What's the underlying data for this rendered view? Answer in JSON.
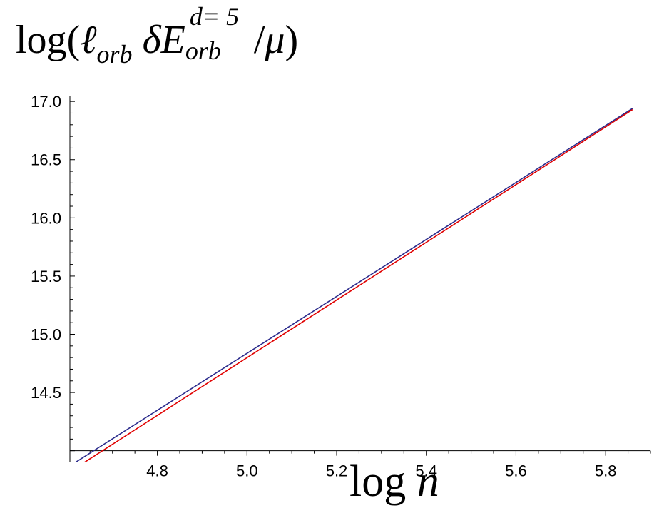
{
  "chart_data": {
    "type": "line",
    "title": "",
    "xlabel": {
      "prefix": "log",
      "var": "n"
    },
    "ylabel": {
      "prefix": "log",
      "l": "ℓ",
      "l_sub": "orb",
      "delta_E": "δE",
      "sup": "d= 5",
      "E_sub": "orb",
      "slash": "/",
      "mu": "μ"
    },
    "xlim": [
      4.605,
      5.9
    ],
    "ylim": [
      13.9,
      17.05
    ],
    "x_origin": 4.605,
    "y_origin": 14.0,
    "x_ticks": [
      {
        "value": 4.8,
        "label": "4.8"
      },
      {
        "value": 5.0,
        "label": "5.0"
      },
      {
        "value": 5.2,
        "label": "5.2"
      },
      {
        "value": 5.4,
        "label": "5.4"
      },
      {
        "value": 5.6,
        "label": "5.6"
      },
      {
        "value": 5.8,
        "label": "5.8"
      }
    ],
    "y_ticks": [
      {
        "value": 14.5,
        "label": "14.5"
      },
      {
        "value": 15.0,
        "label": "15.0"
      },
      {
        "value": 15.5,
        "label": "15.5"
      },
      {
        "value": 16.0,
        "label": "16.0"
      },
      {
        "value": 16.5,
        "label": "16.5"
      },
      {
        "value": 17.0,
        "label": "17.0"
      }
    ],
    "grid": false,
    "series": [
      {
        "color": "#2b2b8c",
        "x": [
          4.605,
          5.86
        ],
        "y": [
          13.87,
          16.94
        ]
      },
      {
        "color": "#e00000",
        "x": [
          4.605,
          5.86
        ],
        "y": [
          13.82,
          16.93
        ]
      }
    ]
  }
}
